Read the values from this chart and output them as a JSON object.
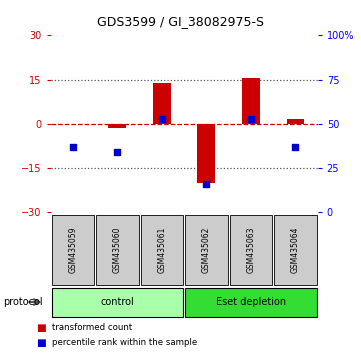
{
  "title": "GDS3599 / GI_38082975-S",
  "samples": [
    "GSM435059",
    "GSM435060",
    "GSM435061",
    "GSM435062",
    "GSM435063",
    "GSM435064"
  ],
  "red_values": [
    0.0,
    -1.5,
    14.0,
    -20.0,
    15.5,
    1.5
  ],
  "blue_values": [
    -8.0,
    -9.5,
    1.5,
    -20.5,
    1.5,
    -8.0
  ],
  "ylim": [
    -30,
    30
  ],
  "yticks_left": [
    -30,
    -15,
    0,
    15,
    30
  ],
  "yticks_right": [
    0,
    25,
    50,
    75,
    100
  ],
  "yticks_right_labels": [
    "0",
    "25",
    "50",
    "75",
    "100%"
  ],
  "red_color": "#cc0000",
  "blue_color": "#0000cc",
  "dashed_line_color": "#cc0000",
  "dotted_line_color": "#555555",
  "dotted_levels": [
    15,
    -15
  ],
  "groups": [
    {
      "label": "control",
      "samples": [
        0,
        1,
        2
      ],
      "color": "#aaffaa"
    },
    {
      "label": "Eset depletion",
      "samples": [
        3,
        4,
        5
      ],
      "color": "#33dd33"
    }
  ],
  "protocol_label": "protocol",
  "legend_red": "transformed count",
  "legend_blue": "percentile rank within the sample",
  "bar_width": 0.4,
  "cell_bg": "#cccccc",
  "cell_border": "#000000"
}
